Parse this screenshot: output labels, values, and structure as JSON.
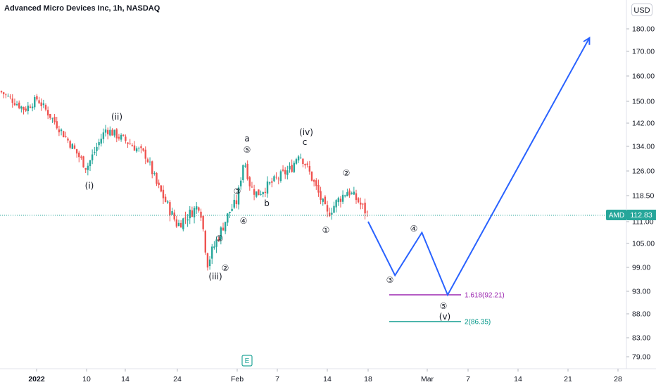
{
  "header": {
    "title": "Advanced Micro Devices Inc, 1h, NASDAQ",
    "currency": "USD"
  },
  "price_tag": {
    "symbol": "AMD",
    "value": "112.83"
  },
  "earnings_marker": "E",
  "colors": {
    "up": "#26a69a",
    "down": "#ef5350",
    "projection": "#2962ff",
    "fib_1": "#9c27b0",
    "fib_2": "#009688",
    "price_line": "#26a69a"
  },
  "chart_data": {
    "type": "candlestick",
    "y_ticks": [
      "180.00",
      "170.00",
      "160.00",
      "150.00",
      "142.00",
      "134.00",
      "126.00",
      "118.50",
      "111.00",
      "105.00",
      "99.00",
      "93.00",
      "88.00",
      "83.00",
      "79.00"
    ],
    "x_ticks": [
      "2022",
      "10",
      "14",
      "24",
      "Feb",
      "7",
      "14",
      "18",
      "Mar",
      "7",
      "14",
      "21",
      "28"
    ],
    "price_path": [
      {
        "x": "Jan 3",
        "y": 154
      },
      {
        "x": "Jan 5",
        "y": 147
      },
      {
        "x": "Jan 6",
        "y": 151
      },
      {
        "x": "Jan 10",
        "y": 127
      },
      {
        "x": "Jan 12",
        "y": 140
      },
      {
        "x": "Jan 13",
        "y": 138
      },
      {
        "x": "Jan 14",
        "y": 136
      },
      {
        "x": "Jan 18",
        "y": 131
      },
      {
        "x": "Jan 20",
        "y": 122
      },
      {
        "x": "Jan 24",
        "y": 110
      },
      {
        "x": "Jan 27",
        "y": 116
      },
      {
        "x": "Jan 28",
        "y": 100
      },
      {
        "x": "Jan 31",
        "y": 114
      },
      {
        "x": "Feb 1",
        "y": 117
      },
      {
        "x": "Feb 2",
        "y": 130
      },
      {
        "x": "Feb 3",
        "y": 121
      },
      {
        "x": "Feb 4",
        "y": 119
      },
      {
        "x": "Feb 9",
        "y": 127
      },
      {
        "x": "Feb 10",
        "y": 132
      },
      {
        "x": "Feb 11",
        "y": 128
      },
      {
        "x": "Feb 14",
        "y": 113
      },
      {
        "x": "Feb 15",
        "y": 117
      },
      {
        "x": "Feb 16",
        "y": 120
      },
      {
        "x": "Feb 17",
        "y": 117
      },
      {
        "x": "Feb 18",
        "y": 112.83
      }
    ],
    "projection": [
      {
        "x": "Feb 18",
        "y": 111
      },
      {
        "x": "Feb 23",
        "y": 97
      },
      {
        "x": "Feb 28",
        "y": 108
      },
      {
        "x": "Mar 4",
        "y": 92.21
      },
      {
        "x": "Mar 24",
        "y": 176
      }
    ],
    "fib_levels": [
      {
        "label": "1.618(92.21)",
        "value": 92.21
      },
      {
        "label": "2(86.35)",
        "value": 86.35
      }
    ],
    "wave_labels": [
      {
        "text": "(i)",
        "x": 127,
        "y": 268
      },
      {
        "text": "(ii)",
        "x": 166,
        "y": 170
      },
      {
        "text": "(iii)",
        "x": 306,
        "y": 397
      },
      {
        "text": "(iv)",
        "x": 435,
        "y": 192
      },
      {
        "text": "(v)",
        "x": 632,
        "y": 454
      },
      {
        "text": "a",
        "x": 351,
        "y": 201
      },
      {
        "text": "b",
        "x": 379,
        "y": 293
      },
      {
        "text": "c",
        "x": 433,
        "y": 206
      },
      {
        "text": "①",
        "x": 312,
        "y": 343
      },
      {
        "text": "②",
        "x": 320,
        "y": 385
      },
      {
        "text": "③",
        "x": 337,
        "y": 276
      },
      {
        "text": "④",
        "x": 346,
        "y": 318
      },
      {
        "text": "⑤",
        "x": 351,
        "y": 217
      },
      {
        "text": "①",
        "x": 463,
        "y": 331
      },
      {
        "text": "②",
        "x": 492,
        "y": 250
      },
      {
        "text": "③",
        "x": 554,
        "y": 402
      },
      {
        "text": "④",
        "x": 588,
        "y": 329
      },
      {
        "text": "⑤",
        "x": 630,
        "y": 439
      }
    ]
  }
}
